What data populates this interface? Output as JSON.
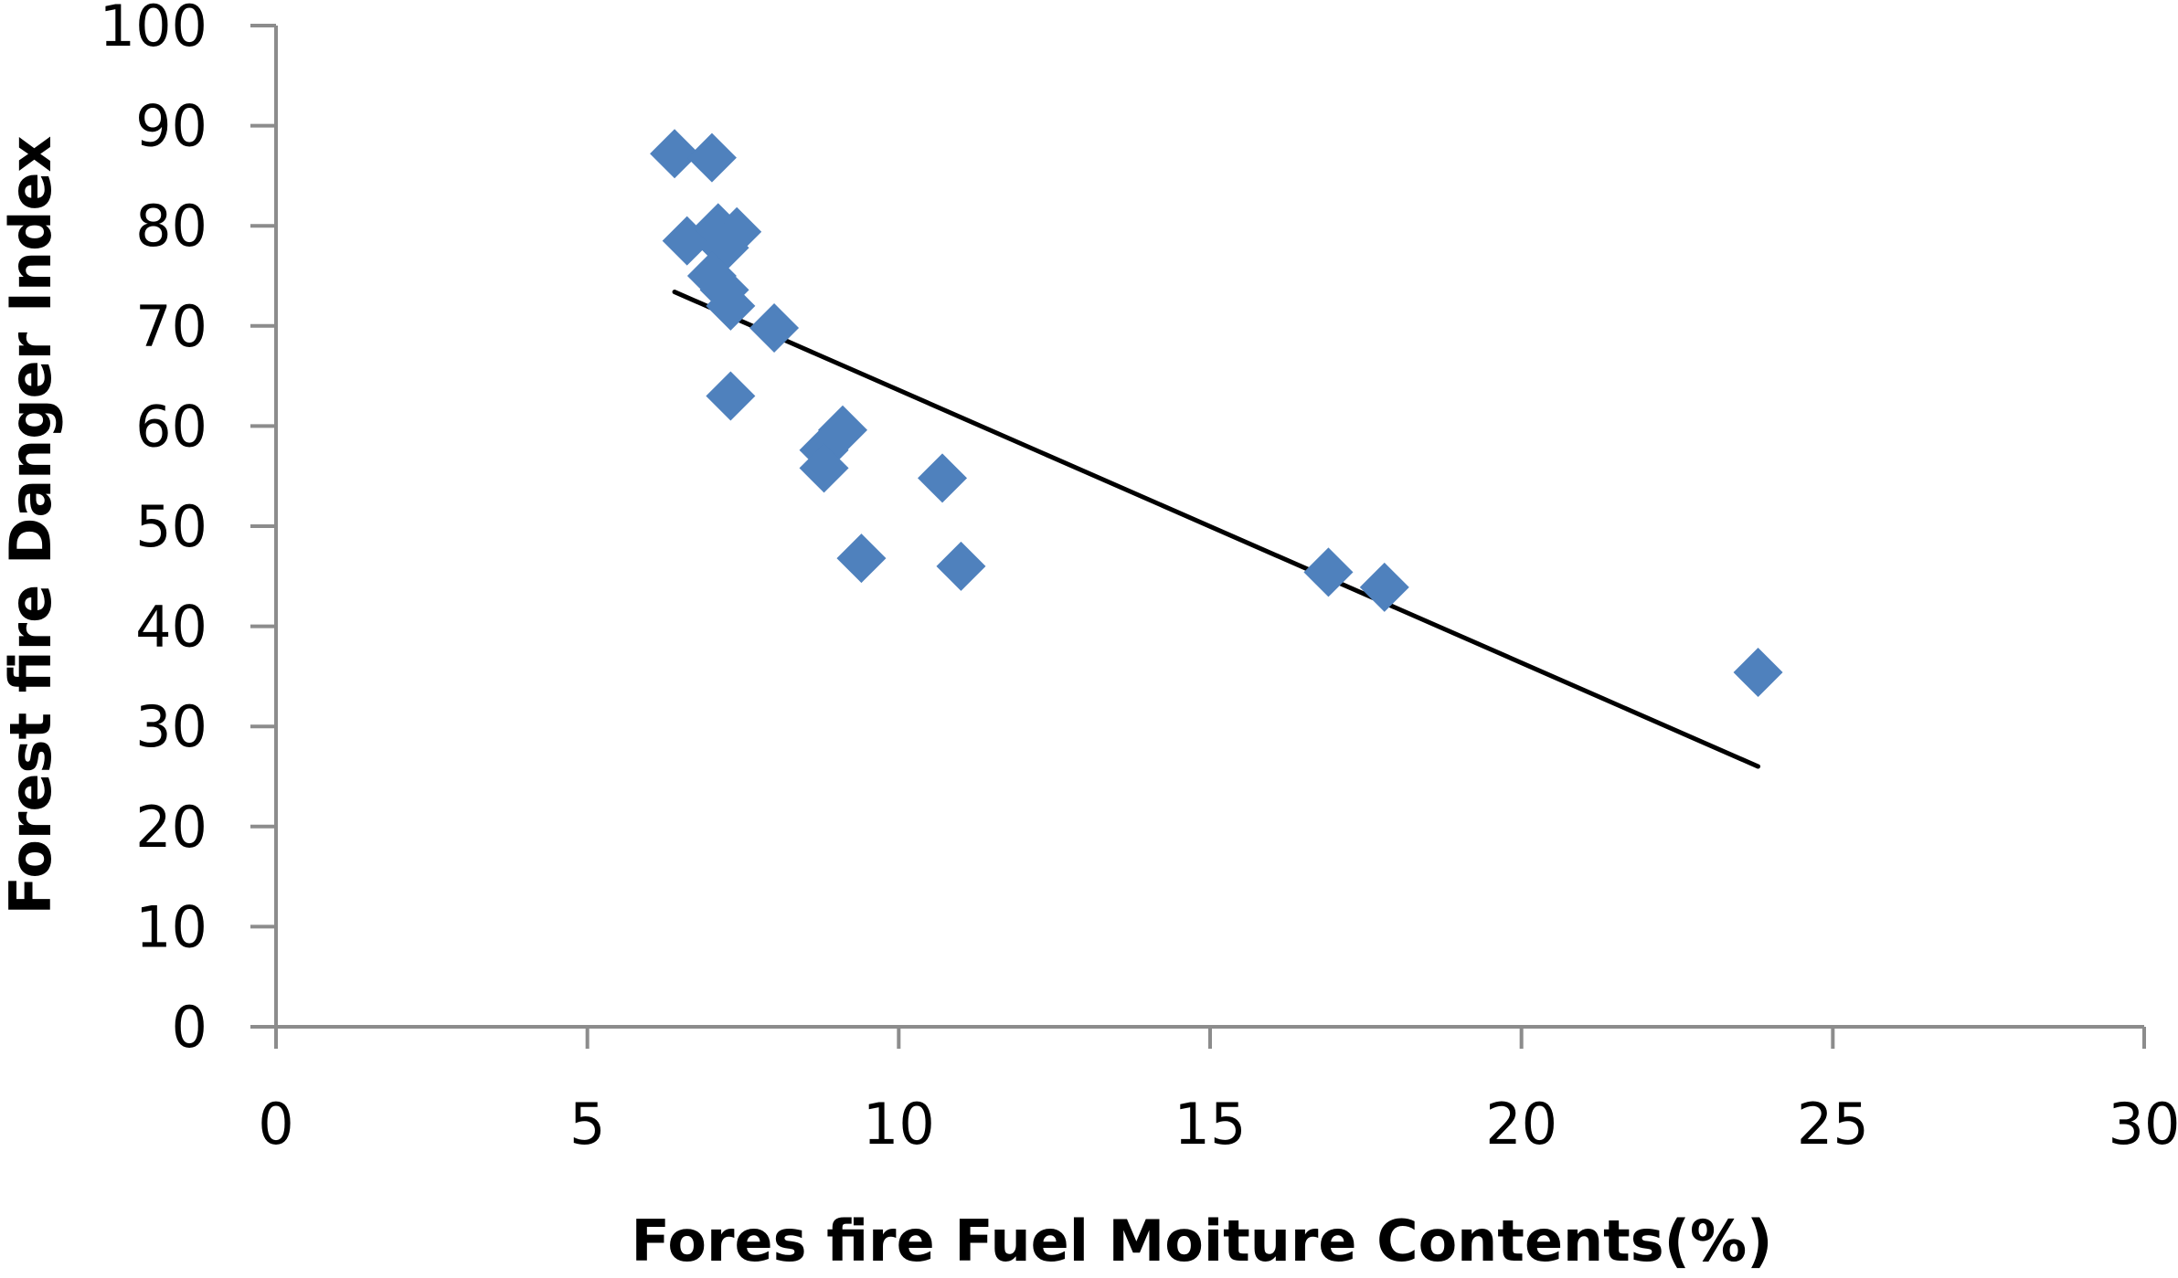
{
  "chart_data": {
    "type": "scatter",
    "title": "",
    "xlabel": "Fores fire Fuel Moiture Contents(%)",
    "ylabel": "Forest fire Danger Index",
    "xlim": [
      0,
      30
    ],
    "ylim": [
      0,
      100
    ],
    "x_ticks": [
      0,
      5,
      10,
      15,
      20,
      25,
      30
    ],
    "y_ticks": [
      0,
      10,
      20,
      30,
      40,
      50,
      60,
      70,
      80,
      90,
      100
    ],
    "x_tick_labels": [
      "0",
      "5",
      "10",
      "15",
      "20",
      "25",
      "30"
    ],
    "y_tick_labels": [
      "0",
      "10",
      "20",
      "30",
      "40",
      "50",
      "60",
      "70",
      "80",
      "90",
      "100"
    ],
    "grid": false,
    "legend": "none",
    "series": [
      {
        "marker": "diamond",
        "color": "#4F81BD",
        "points": [
          [
            6.4,
            87.2
          ],
          [
            7.0,
            86.8
          ],
          [
            6.6,
            78.5
          ],
          [
            7.1,
            79.8
          ],
          [
            7.4,
            79.4
          ],
          [
            7.2,
            77.8
          ],
          [
            7.0,
            75.0
          ],
          [
            7.2,
            73.6
          ],
          [
            7.3,
            72.0
          ],
          [
            8.0,
            69.8
          ],
          [
            7.3,
            63.0
          ],
          [
            8.8,
            57.6
          ],
          [
            9.1,
            59.6
          ],
          [
            8.8,
            55.8
          ],
          [
            10.7,
            54.8
          ],
          [
            9.4,
            46.8
          ],
          [
            11.0,
            46.0
          ],
          [
            16.9,
            45.4
          ],
          [
            17.8,
            43.9
          ],
          [
            23.8,
            35.4
          ]
        ]
      }
    ],
    "trendline": {
      "type": "linear",
      "color": "#000000",
      "points": [
        [
          6.4,
          73.4
        ],
        [
          23.8,
          26.0
        ]
      ]
    }
  }
}
